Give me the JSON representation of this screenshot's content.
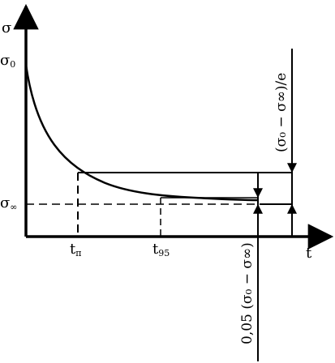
{
  "axes": {
    "y_label": "σ",
    "x_label": "t"
  },
  "y_ticks": {
    "sigma0": {
      "main": "σ",
      "sub": "0"
    },
    "sigma_inf": {
      "main": "σ",
      "sub": "∞"
    }
  },
  "x_ticks": {
    "t_relax": {
      "main": "t",
      "sub": "п"
    },
    "t95": {
      "main": "t",
      "sub": "95"
    }
  },
  "annotations": {
    "upper_interval": "(σ₀ − σ∞)/e",
    "lower_interval": "0,05 (σ₀ − σ∞)"
  },
  "curve": {
    "description_values": {
      "start_level": "σ0",
      "asymptote_level": "σ∞"
    }
  }
}
